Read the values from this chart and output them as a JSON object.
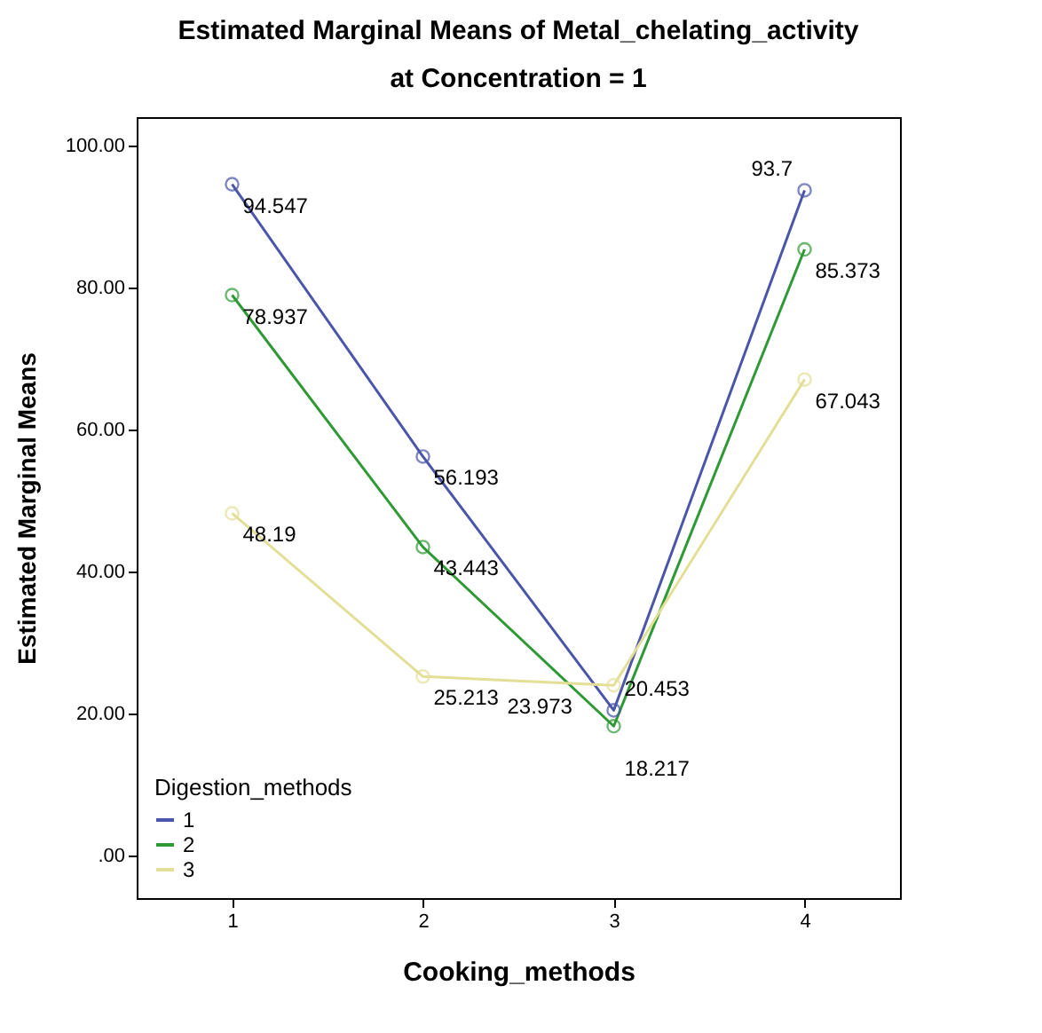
{
  "chart_data": {
    "type": "line",
    "title": "Estimated Marginal Means of Metal_chelating_activity",
    "subtitle": "at Concentration = 1",
    "xlabel": "Cooking_methods",
    "ylabel": "Estimated Marginal Means",
    "legend_title": "Digestion_methods",
    "categories": [
      "1",
      "2",
      "3",
      "4"
    ],
    "series": [
      {
        "name": "1",
        "color": "#4b56aa",
        "values": [
          94.547,
          56.193,
          20.453,
          93.7
        ]
      },
      {
        "name": "2",
        "color": "#2f9a35",
        "values": [
          78.937,
          43.443,
          18.217,
          85.373
        ]
      },
      {
        "name": "3",
        "color": "#e3df96",
        "values": [
          48.19,
          25.213,
          23.973,
          67.043
        ]
      }
    ],
    "ylim": [
      -6,
      104
    ],
    "yticks": [
      {
        "value": 0,
        "label": ".00"
      },
      {
        "value": 20,
        "label": "20.00"
      },
      {
        "value": 40,
        "label": "40.00"
      },
      {
        "value": 60,
        "label": "60.00"
      },
      {
        "value": 80,
        "label": "80.00"
      },
      {
        "value": 100,
        "label": "100.00"
      }
    ],
    "data_labels": true,
    "marker": "circle",
    "legend": "bottom left",
    "grid": false
  }
}
